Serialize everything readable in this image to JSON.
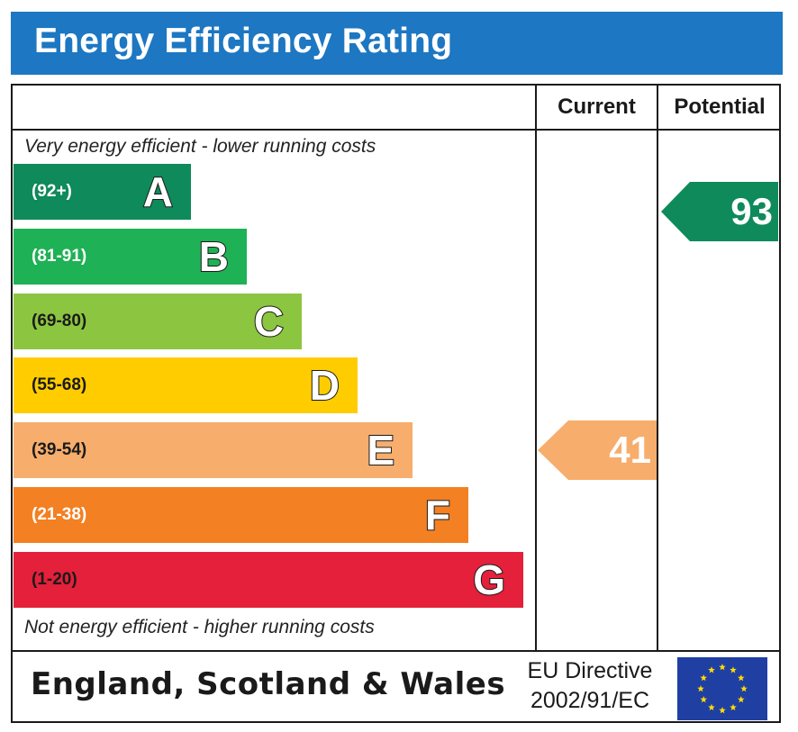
{
  "title": "Energy Efficiency Rating",
  "columns": {
    "current": "Current",
    "potential": "Potential"
  },
  "notes": {
    "top": "Very energy efficient - lower running costs",
    "bottom": "Not energy efficient - higher running costs"
  },
  "colors": {
    "title_bar": "#1d77c2",
    "A": "#0f8a5a",
    "B": "#1fb155",
    "C": "#8cc540",
    "D": "#ffcc00",
    "E": "#f7ad6c",
    "F": "#f38022",
    "G": "#e4203a",
    "eu_flag": "#1f3fa3",
    "eu_stars": "#ffdd00"
  },
  "chart_data": {
    "type": "bar",
    "title": "Energy Efficiency Rating",
    "categories": [
      "A",
      "B",
      "C",
      "D",
      "E",
      "F",
      "G"
    ],
    "series": [
      {
        "ranges": [
          "(92+)",
          "(81-91)",
          "(69-80)",
          "(55-68)",
          "(39-54)",
          "(21-38)",
          "(1-20)"
        ],
        "values": [
          92,
          81,
          69,
          55,
          39,
          21,
          1
        ]
      }
    ],
    "ratings": {
      "current": {
        "value": "41",
        "band": "E"
      },
      "potential": {
        "value": "93",
        "band": "A"
      }
    }
  },
  "footer": {
    "region": "England, Scotland & Wales",
    "directive_line1": "EU Directive",
    "directive_line2": "2002/91/EC",
    "flag_icon": "eu-flag-icon"
  }
}
